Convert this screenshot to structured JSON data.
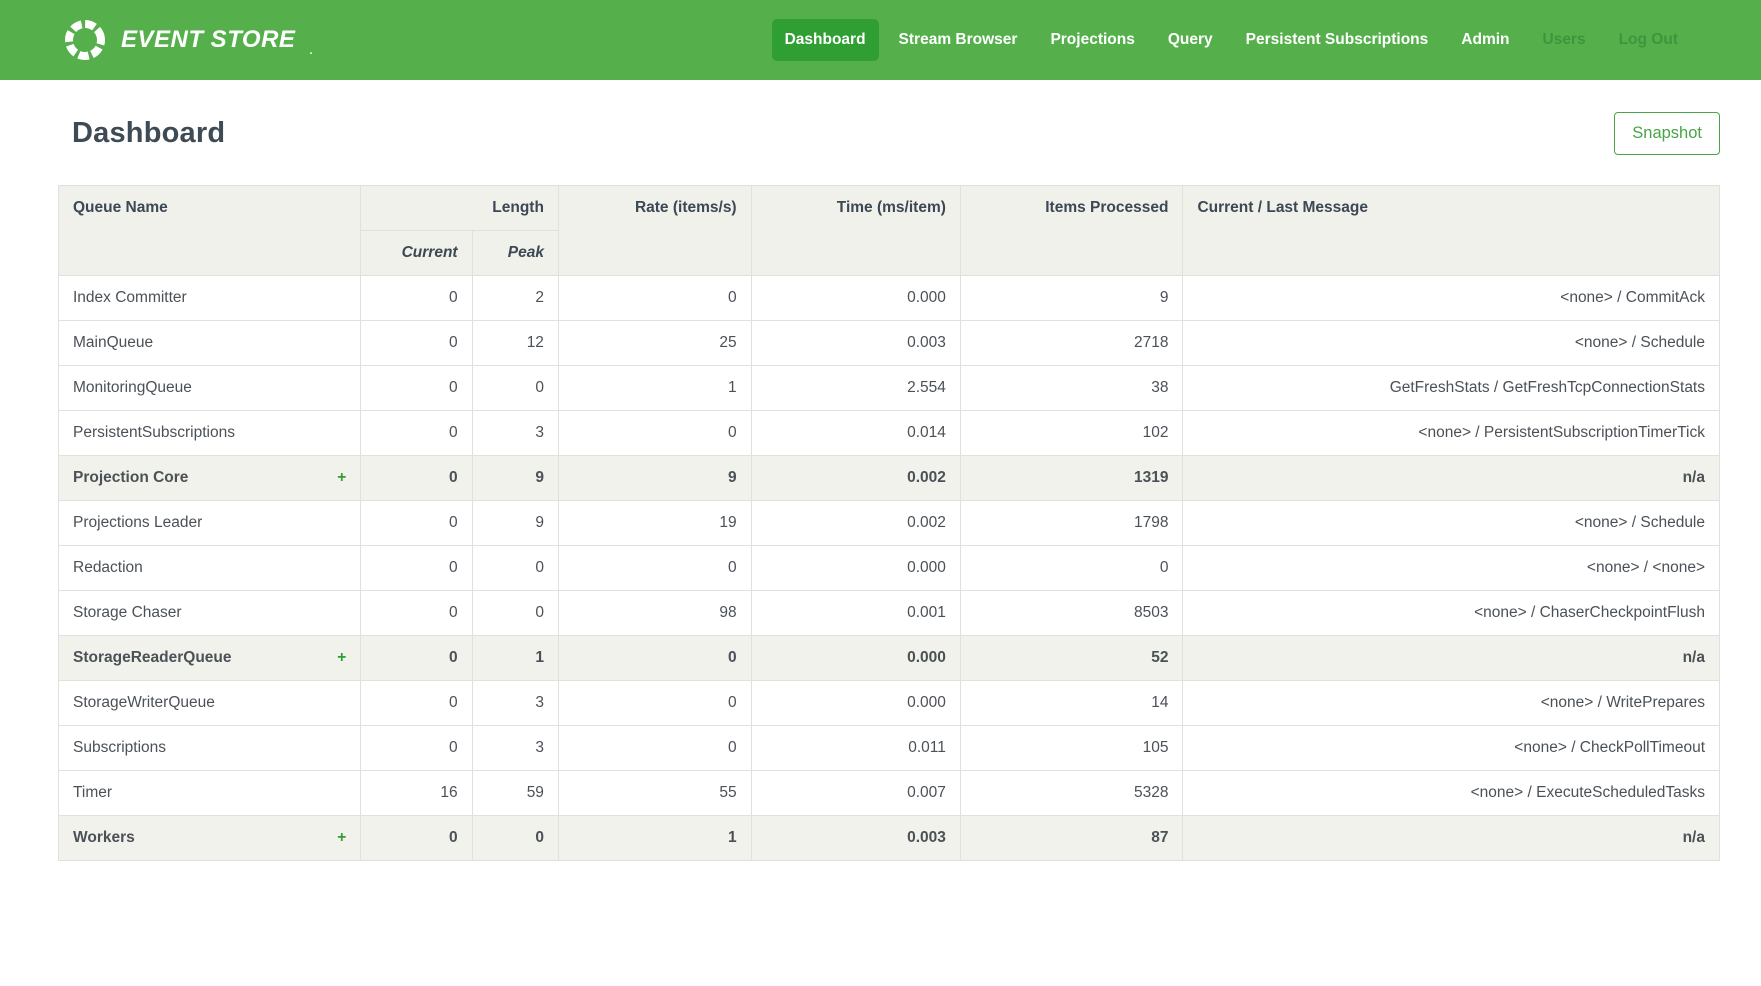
{
  "navbar": {
    "logo_text": "EVENT STORE",
    "logo_suffix": ".",
    "items": [
      {
        "label": "Dashboard",
        "active": true,
        "muted": false
      },
      {
        "label": "Stream Browser",
        "active": false,
        "muted": false
      },
      {
        "label": "Projections",
        "active": false,
        "muted": false
      },
      {
        "label": "Query",
        "active": false,
        "muted": false
      },
      {
        "label": "Persistent Subscriptions",
        "active": false,
        "muted": false
      },
      {
        "label": "Admin",
        "active": false,
        "muted": false
      },
      {
        "label": "Users",
        "active": false,
        "muted": true
      },
      {
        "label": "Log Out",
        "active": false,
        "muted": true
      }
    ]
  },
  "page": {
    "title": "Dashboard",
    "snapshot_button": "Snapshot"
  },
  "table": {
    "expand_icon": "+",
    "headers": {
      "queue_name": "Queue Name",
      "length": "Length",
      "current": "Current",
      "peak": "Peak",
      "rate": "Rate (items/s)",
      "time": "Time (ms/item)",
      "items_processed": "Items Processed",
      "message": "Current / Last Message"
    },
    "rows": [
      {
        "name": "Index Committer",
        "group": false,
        "current": "0",
        "peak": "2",
        "rate": "0",
        "time": "0.000",
        "items": "9",
        "message": "<none> / CommitAck"
      },
      {
        "name": "MainQueue",
        "group": false,
        "current": "0",
        "peak": "12",
        "rate": "25",
        "time": "0.003",
        "items": "2718",
        "message": "<none> / Schedule"
      },
      {
        "name": "MonitoringQueue",
        "group": false,
        "current": "0",
        "peak": "0",
        "rate": "1",
        "time": "2.554",
        "items": "38",
        "message": "GetFreshStats / GetFreshTcpConnectionStats"
      },
      {
        "name": "PersistentSubscriptions",
        "group": false,
        "current": "0",
        "peak": "3",
        "rate": "0",
        "time": "0.014",
        "items": "102",
        "message": "<none> / PersistentSubscriptionTimerTick"
      },
      {
        "name": "Projection Core",
        "group": true,
        "current": "0",
        "peak": "9",
        "rate": "9",
        "time": "0.002",
        "items": "1319",
        "message": "n/a"
      },
      {
        "name": "Projections Leader",
        "group": false,
        "current": "0",
        "peak": "9",
        "rate": "19",
        "time": "0.002",
        "items": "1798",
        "message": "<none> / Schedule"
      },
      {
        "name": "Redaction",
        "group": false,
        "current": "0",
        "peak": "0",
        "rate": "0",
        "time": "0.000",
        "items": "0",
        "message": "<none> / <none>"
      },
      {
        "name": "Storage Chaser",
        "group": false,
        "current": "0",
        "peak": "0",
        "rate": "98",
        "time": "0.001",
        "items": "8503",
        "message": "<none> / ChaserCheckpointFlush"
      },
      {
        "name": "StorageReaderQueue",
        "group": true,
        "current": "0",
        "peak": "1",
        "rate": "0",
        "time": "0.000",
        "items": "52",
        "message": "n/a"
      },
      {
        "name": "StorageWriterQueue",
        "group": false,
        "current": "0",
        "peak": "3",
        "rate": "0",
        "time": "0.000",
        "items": "14",
        "message": "<none> / WritePrepares"
      },
      {
        "name": "Subscriptions",
        "group": false,
        "current": "0",
        "peak": "3",
        "rate": "0",
        "time": "0.011",
        "items": "105",
        "message": "<none> / CheckPollTimeout"
      },
      {
        "name": "Timer",
        "group": false,
        "current": "16",
        "peak": "59",
        "rate": "55",
        "time": "0.007",
        "items": "5328",
        "message": "<none> / ExecuteScheduledTasks"
      },
      {
        "name": "Workers",
        "group": true,
        "current": "0",
        "peak": "0",
        "rate": "1",
        "time": "0.003",
        "items": "87",
        "message": "n/a"
      }
    ]
  },
  "colors": {
    "navbar_bg": "#55b04c",
    "navbar_active_bg": "#2f9e33",
    "navbar_muted_text": "#3c963c",
    "accent_green": "#2f9e2f",
    "button_green": "#47a447",
    "title_text": "#3e4a54",
    "header_bg": "#f0f1ea",
    "group_row_bg": "#f1f2eb",
    "border_color": "#e0e0dc",
    "body_text": "#4b5157",
    "header_text": "#3c4853"
  }
}
